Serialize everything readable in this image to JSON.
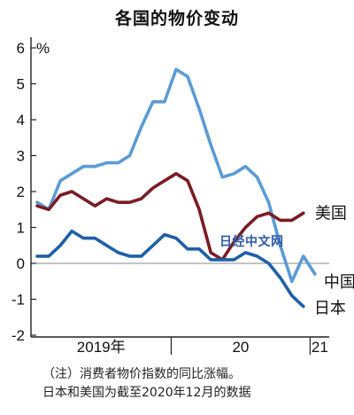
{
  "title": "各国的物价变动",
  "watermark": "日经中文网",
  "notes": [
    "（注）消费者物价指数的同比涨幅。",
    "日本和美国为截至2020年12月的数据"
  ],
  "colors": {
    "china": "#5b9bd5",
    "usa": "#7b1c24",
    "japan": "#1e5fa8",
    "axis": "#222222"
  },
  "chart_data": {
    "type": "line",
    "title": "各国的物价变动",
    "ylabel": "%",
    "ylim": [
      -2,
      6
    ],
    "yticks": [
      -2,
      -1,
      0,
      1,
      2,
      3,
      4,
      5,
      6
    ],
    "x_groups": [
      {
        "label": "2019年",
        "start": 1,
        "end": 13
      },
      {
        "label": "20",
        "start": 13,
        "end": 25
      },
      {
        "label": "21",
        "start": 25,
        "end": 26
      }
    ],
    "series": [
      {
        "name": "中国",
        "key": "china",
        "x": [
          1,
          2,
          3,
          4,
          5,
          6,
          7,
          8,
          9,
          10,
          11,
          12,
          13,
          14,
          15,
          16,
          17,
          18,
          19,
          20,
          21,
          22,
          23,
          24,
          25
        ],
        "values": [
          1.7,
          1.5,
          2.3,
          2.5,
          2.7,
          2.7,
          2.8,
          2.8,
          3.0,
          3.8,
          4.5,
          4.5,
          5.4,
          5.2,
          4.3,
          3.3,
          2.4,
          2.5,
          2.7,
          2.4,
          1.7,
          0.5,
          -0.5,
          0.2,
          -0.3
        ]
      },
      {
        "name": "美国",
        "key": "usa",
        "x": [
          1,
          2,
          3,
          4,
          5,
          6,
          7,
          8,
          9,
          10,
          11,
          12,
          13,
          14,
          15,
          16,
          17,
          18,
          19,
          20,
          21,
          22,
          23,
          24
        ],
        "values": [
          1.6,
          1.5,
          1.9,
          2.0,
          1.8,
          1.6,
          1.8,
          1.7,
          1.7,
          1.8,
          2.1,
          2.3,
          2.5,
          2.3,
          1.5,
          0.3,
          0.1,
          0.6,
          1.0,
          1.3,
          1.4,
          1.2,
          1.2,
          1.4
        ]
      },
      {
        "name": "日本",
        "key": "japan",
        "x": [
          1,
          2,
          3,
          4,
          5,
          6,
          7,
          8,
          9,
          10,
          11,
          12,
          13,
          14,
          15,
          16,
          17,
          18,
          19,
          20,
          21,
          22,
          23,
          24
        ],
        "values": [
          0.2,
          0.2,
          0.5,
          0.9,
          0.7,
          0.7,
          0.5,
          0.3,
          0.2,
          0.2,
          0.5,
          0.8,
          0.7,
          0.4,
          0.4,
          0.1,
          0.1,
          0.1,
          0.3,
          0.2,
          0.0,
          -0.4,
          -0.9,
          -1.2
        ]
      }
    ]
  }
}
